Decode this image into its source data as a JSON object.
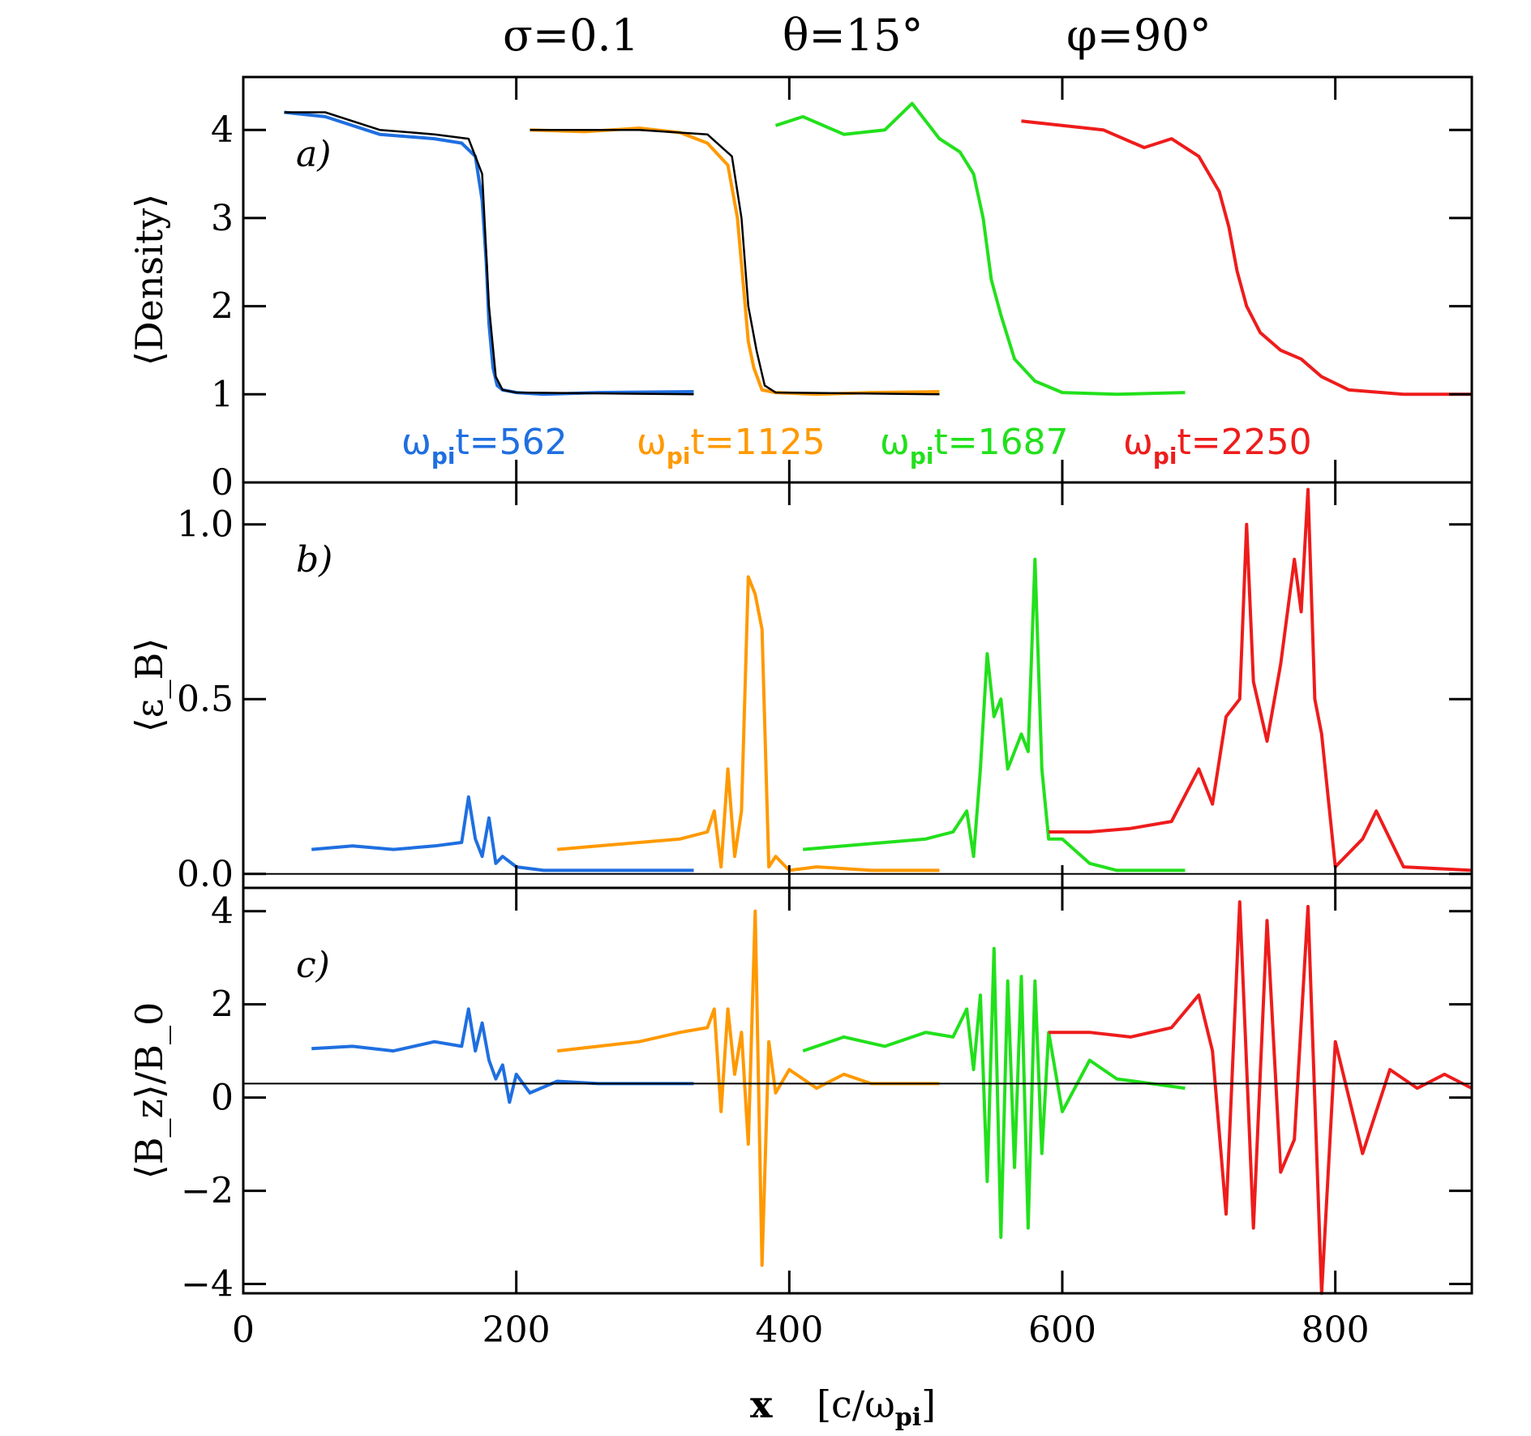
{
  "title": {
    "sigma": "σ=0.1",
    "theta": "θ=15°",
    "phi": "φ=90°"
  },
  "time_labels": [
    {
      "prefix": "ω",
      "sub": "pi",
      "suffix": "t=562",
      "color": "#1f6fe0"
    },
    {
      "prefix": "ω",
      "sub": "pi",
      "suffix": "t=1125",
      "color": "#ff9900"
    },
    {
      "prefix": "ω",
      "sub": "pi",
      "suffix": "t=1687",
      "color": "#22e01c"
    },
    {
      "prefix": "ω",
      "sub": "pi",
      "suffix": "t=2250",
      "color": "#ee1c1c"
    }
  ],
  "xaxis": {
    "label_main": "x",
    "label_unit_prefix": "[c/ω",
    "label_unit_sub": "pi",
    "label_unit_suffix": "]",
    "range": [
      0,
      900
    ],
    "ticks": [
      "0",
      "200",
      "400",
      "600",
      "800"
    ],
    "tick_values": [
      0,
      200,
      400,
      600,
      800
    ]
  },
  "chart_data": [
    {
      "type": "line",
      "panel": "a)",
      "ylabel": "⟨Density⟩",
      "ylim": [
        0,
        4.6
      ],
      "yticks": [
        "0",
        "1",
        "2",
        "3",
        "4"
      ],
      "ytick_values": [
        0,
        1,
        2,
        3,
        4
      ],
      "series": [
        {
          "color": "#1f6fe0",
          "x": [
            30,
            60,
            100,
            140,
            160,
            170,
            175,
            178,
            180,
            183,
            186,
            190,
            200,
            220,
            260,
            330
          ],
          "y": [
            4.2,
            4.15,
            3.95,
            3.9,
            3.85,
            3.7,
            3.2,
            2.5,
            1.8,
            1.3,
            1.1,
            1.05,
            1.02,
            1.0,
            1.02,
            1.03
          ]
        },
        {
          "color": "#ff9900",
          "x": [
            210,
            250,
            290,
            320,
            340,
            355,
            362,
            366,
            370,
            374,
            380,
            390,
            420,
            460,
            510
          ],
          "y": [
            4.0,
            3.98,
            4.02,
            3.97,
            3.85,
            3.6,
            3.0,
            2.3,
            1.6,
            1.3,
            1.05,
            1.02,
            1.0,
            1.02,
            1.03
          ]
        },
        {
          "color": "#22e01c",
          "x": [
            390,
            410,
            440,
            470,
            490,
            510,
            525,
            535,
            542,
            548,
            555,
            565,
            580,
            600,
            640,
            690
          ],
          "y": [
            4.05,
            4.15,
            3.95,
            4.0,
            4.3,
            3.9,
            3.75,
            3.5,
            3.0,
            2.3,
            1.9,
            1.4,
            1.15,
            1.02,
            1.0,
            1.02
          ]
        },
        {
          "color": "#ee1c1c",
          "x": [
            570,
            600,
            630,
            660,
            680,
            700,
            715,
            722,
            728,
            735,
            745,
            760,
            775,
            790,
            810,
            850,
            900
          ],
          "y": [
            4.1,
            4.05,
            4.0,
            3.8,
            3.9,
            3.7,
            3.3,
            2.9,
            2.4,
            2.0,
            1.7,
            1.5,
            1.4,
            1.2,
            1.05,
            1.0,
            1.0
          ]
        },
        {
          "color": "#000000",
          "x": [
            30,
            60,
            100,
            140,
            165,
            175,
            180,
            185,
            190,
            200,
            330,
            340,
            210,
            290,
            340,
            358,
            365,
            370,
            376,
            382,
            390,
            510
          ],
          "y": [
            4.2,
            4.2,
            4.0,
            3.95,
            3.9,
            3.5,
            2.0,
            1.2,
            1.05,
            1.02,
            1.0,
            null,
            4.0,
            4.0,
            3.95,
            3.7,
            3.0,
            2.0,
            1.5,
            1.1,
            1.02,
            1.0
          ]
        }
      ]
    },
    {
      "type": "line",
      "panel": "b)",
      "ylabel": "⟨ε_B⟩",
      "ylim": [
        -0.04,
        1.12
      ],
      "yticks": [
        "0.0",
        "0.5",
        "1.0"
      ],
      "ytick_values": [
        0,
        0.5,
        1.0
      ],
      "series": [
        {
          "color": "#1f6fe0",
          "x": [
            50,
            80,
            110,
            140,
            160,
            165,
            170,
            175,
            180,
            185,
            190,
            200,
            220,
            260,
            330
          ],
          "y": [
            0.07,
            0.08,
            0.07,
            0.08,
            0.09,
            0.22,
            0.1,
            0.05,
            0.16,
            0.03,
            0.05,
            0.02,
            0.01,
            0.01,
            0.01
          ]
        },
        {
          "color": "#ff9900",
          "x": [
            230,
            260,
            290,
            320,
            340,
            345,
            350,
            355,
            360,
            365,
            370,
            375,
            380,
            385,
            390,
            400,
            420,
            460,
            510
          ],
          "y": [
            0.07,
            0.08,
            0.09,
            0.1,
            0.12,
            0.18,
            0.02,
            0.3,
            0.05,
            0.18,
            0.85,
            0.8,
            0.7,
            0.02,
            0.05,
            0.01,
            0.02,
            0.01,
            0.01
          ]
        },
        {
          "color": "#22e01c",
          "x": [
            410,
            440,
            470,
            500,
            520,
            530,
            535,
            540,
            545,
            550,
            555,
            560,
            570,
            575,
            580,
            585,
            590,
            600,
            620,
            640,
            690
          ],
          "y": [
            0.07,
            0.08,
            0.09,
            0.1,
            0.12,
            0.18,
            0.05,
            0.3,
            0.63,
            0.45,
            0.5,
            0.3,
            0.4,
            0.35,
            0.9,
            0.3,
            0.1,
            0.1,
            0.03,
            0.01,
            0.01
          ]
        },
        {
          "color": "#ee1c1c",
          "x": [
            590,
            620,
            650,
            680,
            700,
            710,
            720,
            730,
            735,
            740,
            750,
            760,
            770,
            775,
            780,
            785,
            790,
            800,
            820,
            830,
            850,
            900
          ],
          "y": [
            0.12,
            0.12,
            0.13,
            0.15,
            0.3,
            0.2,
            0.45,
            0.5,
            1.0,
            0.55,
            0.38,
            0.6,
            0.9,
            0.75,
            1.1,
            0.5,
            0.4,
            0.02,
            0.1,
            0.18,
            0.02,
            0.01
          ]
        }
      ]
    },
    {
      "type": "line",
      "panel": "c)",
      "ylabel": "⟨B_z⟩/B_0",
      "ylim": [
        -4.2,
        4.5
      ],
      "yticks": [
        "−4",
        "−2",
        "0",
        "2",
        "4"
      ],
      "ytick_values": [
        -4,
        -2,
        0,
        2,
        4
      ],
      "series": [
        {
          "color": "#1f6fe0",
          "x": [
            50,
            80,
            110,
            140,
            160,
            165,
            170,
            175,
            180,
            185,
            190,
            195,
            200,
            210,
            230,
            260,
            330
          ],
          "y": [
            1.05,
            1.1,
            1.0,
            1.2,
            1.1,
            1.9,
            1.0,
            1.6,
            0.8,
            0.4,
            0.7,
            -0.1,
            0.5,
            0.1,
            0.35,
            0.3,
            0.3
          ]
        },
        {
          "color": "#ff9900",
          "x": [
            230,
            260,
            290,
            320,
            340,
            345,
            350,
            355,
            360,
            365,
            370,
            375,
            380,
            385,
            390,
            400,
            420,
            440,
            460,
            510
          ],
          "y": [
            1.0,
            1.1,
            1.2,
            1.4,
            1.5,
            1.9,
            -0.3,
            1.9,
            0.5,
            1.4,
            -1.0,
            4.0,
            -3.6,
            1.2,
            0.1,
            0.6,
            0.2,
            0.5,
            0.3,
            0.3
          ]
        },
        {
          "color": "#22e01c",
          "x": [
            410,
            440,
            470,
            500,
            520,
            530,
            535,
            540,
            545,
            550,
            555,
            560,
            565,
            570,
            575,
            580,
            585,
            590,
            600,
            620,
            640,
            690
          ],
          "y": [
            1.0,
            1.3,
            1.1,
            1.4,
            1.3,
            1.9,
            0.6,
            2.2,
            -1.8,
            3.2,
            -3.0,
            2.5,
            -1.5,
            2.6,
            -2.8,
            2.5,
            -1.2,
            1.4,
            -0.3,
            0.8,
            0.4,
            0.2
          ]
        },
        {
          "color": "#ee1c1c",
          "x": [
            590,
            620,
            650,
            680,
            700,
            710,
            720,
            730,
            740,
            750,
            760,
            770,
            780,
            790,
            800,
            820,
            840,
            860,
            880,
            900
          ],
          "y": [
            1.4,
            1.4,
            1.3,
            1.5,
            2.2,
            1.0,
            -2.5,
            4.2,
            -2.8,
            3.8,
            -1.6,
            -0.9,
            4.1,
            -4.2,
            1.2,
            -1.2,
            0.6,
            0.2,
            0.5,
            0.2
          ]
        }
      ]
    }
  ]
}
